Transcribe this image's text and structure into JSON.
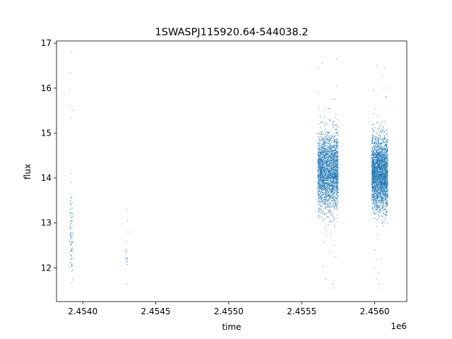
{
  "chart_data": {
    "type": "scatter",
    "title": "1SWASPJ115920.64-544038.2",
    "xlabel": "time",
    "ylabel": "flux",
    "x_offset_label": "1e6",
    "x_scale": 1000000,
    "xlim": [
      2.45382,
      2.45622
    ],
    "ylim": [
      11.25,
      17.05
    ],
    "x_ticks": [
      2.454,
      2.4545,
      2.455,
      2.4555,
      2.456
    ],
    "x_tick_labels": [
      "2.4540",
      "2.4545",
      "2.4550",
      "2.4555",
      "2.4560"
    ],
    "y_ticks": [
      12,
      13,
      14,
      15,
      16,
      17
    ],
    "y_tick_labels": [
      "12",
      "13",
      "14",
      "15",
      "16",
      "17"
    ],
    "grid": false,
    "point_color": "#1f77b4",
    "series": [
      {
        "clusters": [
          {
            "x_range": [
              2.45391,
              2.45393
            ],
            "flux_center": 12.75,
            "flux_spread": 0.45,
            "count": 90,
            "extra_flux": [
              15.35,
              15.5,
              15.6,
              15.95,
              16.35,
              16.8,
              14.1,
              13.55,
              13.9,
              13.05
            ]
          },
          {
            "x_range": [
              2.45429,
              2.45431
            ],
            "flux_center": 12.2,
            "flux_spread": 0.15,
            "count": 14,
            "extra_flux": [
              13.3,
              13.05,
              12.8,
              11.65
            ]
          },
          {
            "x_range": [
              2.45561,
              2.45575
            ],
            "flux_center": 14.15,
            "flux_spread": 0.42,
            "count": 2800,
            "extra_flux": [
              16.65,
              16.55,
              16.45,
              16.05,
              15.9,
              15.55,
              15.55,
              11.55,
              11.65,
              11.75,
              12.05,
              12.25,
              12.35,
              12.5
            ]
          },
          {
            "x_range": [
              2.45598,
              2.45609
            ],
            "flux_center": 14.1,
            "flux_spread": 0.4,
            "count": 3000,
            "extra_flux": [
              16.5,
              16.45,
              16.25,
              16.0,
              15.95,
              15.8,
              11.55,
              11.65,
              11.75,
              11.9,
              12.0,
              12.2,
              12.4
            ]
          }
        ]
      }
    ]
  }
}
